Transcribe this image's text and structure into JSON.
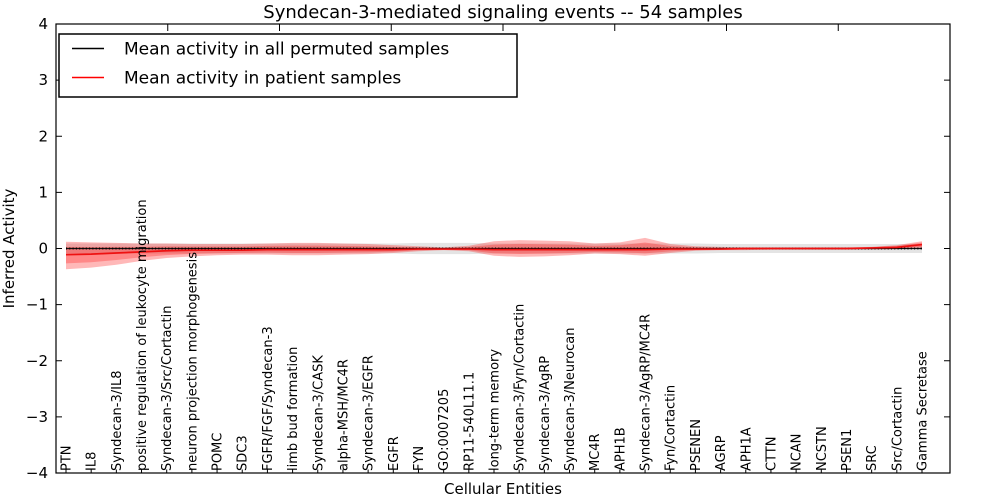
{
  "chart_data": {
    "type": "line",
    "title": "Syndecan-3-mediated signaling events -- 54 samples",
    "xlabel": "Cellular Entities",
    "ylabel": "Inferred Activity",
    "ylim": [
      -4,
      4
    ],
    "yticks": [
      -4,
      -3,
      -2,
      -1,
      0,
      1,
      2,
      3,
      4
    ],
    "yticklabels": [
      "−4",
      "−3",
      "−2",
      "−1",
      "0",
      "1",
      "2",
      "3",
      "4"
    ],
    "grid": false,
    "legend_position": "upper left",
    "categories": [
      "PTN",
      "IL8",
      "Syndecan-3/IL8",
      "positive regulation of leukocyte migration",
      "Syndecan-3/Src/Cortactin",
      "neuron projection morphogenesis",
      "POMC",
      "SDC3",
      "FGFR/FGF/Syndecan-3",
      "limb bud formation",
      "Syndecan-3/CASK",
      "alpha-MSH/MC4R",
      "Syndecan-3/EGFR",
      "EGFR",
      "FYN",
      "GO:0007205",
      "RP11-540L11.1",
      "long-term memory",
      "Syndecan-3/Fyn/Cortactin",
      "Syndecan-3/AgRP",
      "Syndecan-3/Neurocan",
      "MC4R",
      "APH1B",
      "Syndecan-3/AgRP/MC4R",
      "Fyn/Cortactin",
      "PSENEN",
      "AGRP",
      "APH1A",
      "CTTN",
      "NCAN",
      "NCSTN",
      "PSEN1",
      "SRC",
      "Src/Cortactin",
      "Gamma Secretase"
    ],
    "series": [
      {
        "name": "Mean activity in all permuted samples",
        "color": "#000000",
        "values": [
          0,
          0,
          0,
          0,
          0,
          0,
          0,
          0,
          0,
          0,
          0,
          0,
          0,
          0,
          0,
          0,
          0,
          0,
          0,
          0,
          0,
          0,
          0,
          0,
          0,
          0,
          0,
          0,
          0,
          0,
          0,
          0,
          0,
          0,
          0
        ]
      },
      {
        "name": "Mean activity in patient samples",
        "color": "#ff0000",
        "values": [
          -0.11,
          -0.1,
          -0.08,
          -0.06,
          -0.04,
          -0.03,
          -0.03,
          -0.03,
          -0.02,
          -0.02,
          -0.02,
          -0.02,
          -0.02,
          -0.02,
          -0.01,
          -0.01,
          -0.01,
          -0.02,
          -0.02,
          -0.02,
          -0.02,
          -0.02,
          -0.02,
          -0.02,
          -0.01,
          -0.01,
          -0.01,
          0,
          0,
          0,
          0,
          0,
          0.01,
          0.02,
          0.07
        ]
      }
    ],
    "bands": {
      "patient_std_upper": [
        0.12,
        0.11,
        0.1,
        0.09,
        0.09,
        0.08,
        0.08,
        0.08,
        0.09,
        0.1,
        0.1,
        0.09,
        0.08,
        0.06,
        0.04,
        0.02,
        0.05,
        0.13,
        0.15,
        0.14,
        0.13,
        0.09,
        0.11,
        0.19,
        0.08,
        0.04,
        0.03,
        0.02,
        0.02,
        0.02,
        0.02,
        0.02,
        0.03,
        0.06,
        0.13
      ],
      "patient_std_lower": [
        -0.37,
        -0.34,
        -0.29,
        -0.22,
        -0.17,
        -0.14,
        -0.12,
        -0.11,
        -0.11,
        -0.12,
        -0.12,
        -0.11,
        -0.1,
        -0.08,
        -0.05,
        -0.03,
        -0.05,
        -0.13,
        -0.15,
        -0.14,
        -0.12,
        -0.09,
        -0.1,
        -0.13,
        -0.08,
        -0.04,
        -0.03,
        -0.03,
        -0.02,
        -0.02,
        -0.02,
        -0.02,
        -0.02,
        -0.01,
        0.0
      ],
      "permuted_std_halfwidth": [
        0.09,
        0.09,
        0.09,
        0.09,
        0.09,
        0.09,
        0.09,
        0.09,
        0.09,
        0.09,
        0.09,
        0.09,
        0.09,
        0.09,
        0.1,
        0.1,
        0.1,
        0.09,
        0.09,
        0.09,
        0.09,
        0.09,
        0.09,
        0.09,
        0.09,
        0.09,
        0.08,
        0.08,
        0.08,
        0.08,
        0.08,
        0.08,
        0.08,
        0.08,
        0.08
      ],
      "patient_band_color": "#ff0000",
      "permuted_band_color": "#e4e4e4"
    }
  }
}
